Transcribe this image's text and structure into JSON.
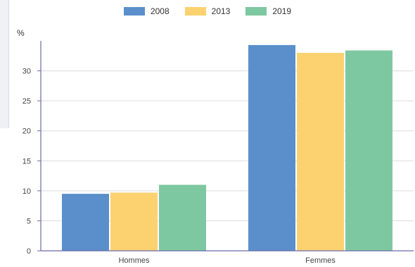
{
  "chart_data": {
    "type": "bar",
    "categories": [
      "Hommes",
      "Femmes"
    ],
    "series": [
      {
        "name": "2008",
        "values": [
          9.5,
          34.3
        ],
        "color": "#5b8fcb"
      },
      {
        "name": "2013",
        "values": [
          9.7,
          33.0
        ],
        "color": "#fcd270"
      },
      {
        "name": "2019",
        "values": [
          11.0,
          33.4
        ],
        "color": "#7dc8a0"
      }
    ],
    "ylabel": "%",
    "xlabel": "",
    "ylim": [
      0,
      35
    ],
    "yticks": [
      0,
      5,
      10,
      15,
      20,
      25,
      30
    ],
    "grid": true,
    "legend_position": "top-center"
  }
}
